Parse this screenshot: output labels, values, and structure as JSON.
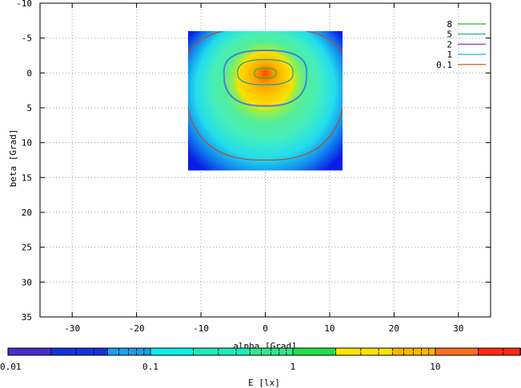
{
  "chart_data": [
    {
      "type": "heatmap",
      "xlabel": "alpha [Grad]",
      "ylabel": "beta [Grad]",
      "xlim": [
        -35,
        35
      ],
      "ylim": [
        -10,
        35
      ],
      "y_inverted": true,
      "x_ticks": [
        -30,
        -20,
        -10,
        0,
        10,
        20,
        30
      ],
      "y_ticks": [
        -10,
        -5,
        0,
        5,
        10,
        15,
        20,
        25,
        30,
        35
      ],
      "grid": true,
      "data_extent": {
        "x": [
          -12,
          12
        ],
        "y": [
          -6,
          14
        ]
      },
      "peak": {
        "x": 0,
        "y": 0
      },
      "legend_position": "top-right",
      "contours": [
        {
          "level": "8",
          "color": "#22bb22",
          "rx": 1.7,
          "ry_top": 0.7,
          "ry_bottom": 0.8
        },
        {
          "level": "5",
          "color": "#1a9aa0",
          "rx": 4.3,
          "ry_top": 1.9,
          "ry_bottom": 1.7
        },
        {
          "level": "2",
          "color": "#9933cc",
          "rx": 6.4,
          "ry_top": 3.2,
          "ry_bottom": 4.7
        },
        {
          "level": "1",
          "color": "#00c8d8",
          "rx": 6.5,
          "ry_top": 3.3,
          "ry_bottom": 4.8
        },
        {
          "level": "0.1",
          "color": "#c04a1a",
          "rx": 12.5,
          "ry_top": 6.5,
          "ry_bottom": 12.5
        }
      ],
      "color_stops": [
        {
          "offset": 0.0,
          "color": "#ff4a00"
        },
        {
          "offset": 0.1,
          "color": "#ffa000"
        },
        {
          "offset": 0.2,
          "color": "#ffc800"
        },
        {
          "offset": 0.28,
          "color": "#ffe000"
        },
        {
          "offset": 0.33,
          "color": "#99ee44"
        },
        {
          "offset": 0.42,
          "color": "#55ee99"
        },
        {
          "offset": 0.56,
          "color": "#44eebb"
        },
        {
          "offset": 0.72,
          "color": "#22ddee"
        },
        {
          "offset": 0.86,
          "color": "#1188ee"
        },
        {
          "offset": 1.0,
          "color": "#0a1ee6"
        }
      ]
    },
    {
      "type": "colorbar",
      "label": "E [lx]",
      "scale": "log",
      "range": [
        0.01,
        40
      ],
      "tick_values": [
        0.01,
        0.1,
        1,
        10
      ],
      "tick_labels": [
        "0.01",
        "0.1",
        "1",
        "10"
      ],
      "segments": [
        {
          "from": 0.01,
          "to": 0.02,
          "color": "#4a2ccf"
        },
        {
          "from": 0.02,
          "to": 0.05,
          "color": "#1432dc"
        },
        {
          "from": 0.05,
          "to": 0.1,
          "color": "#1aa0ee"
        },
        {
          "from": 0.1,
          "to": 0.2,
          "color": "#10ecec"
        },
        {
          "from": 0.2,
          "to": 0.5,
          "color": "#20eabc"
        },
        {
          "from": 0.5,
          "to": 1,
          "color": "#30e88a"
        },
        {
          "from": 1,
          "to": 2,
          "color": "#22e04a"
        },
        {
          "from": 2,
          "to": 5,
          "color": "#ffe400"
        },
        {
          "from": 5,
          "to": 10,
          "color": "#ffb400"
        },
        {
          "from": 10,
          "to": 20,
          "color": "#ff7020"
        },
        {
          "from": 20,
          "to": 40,
          "color": "#ff2a10"
        }
      ]
    }
  ]
}
